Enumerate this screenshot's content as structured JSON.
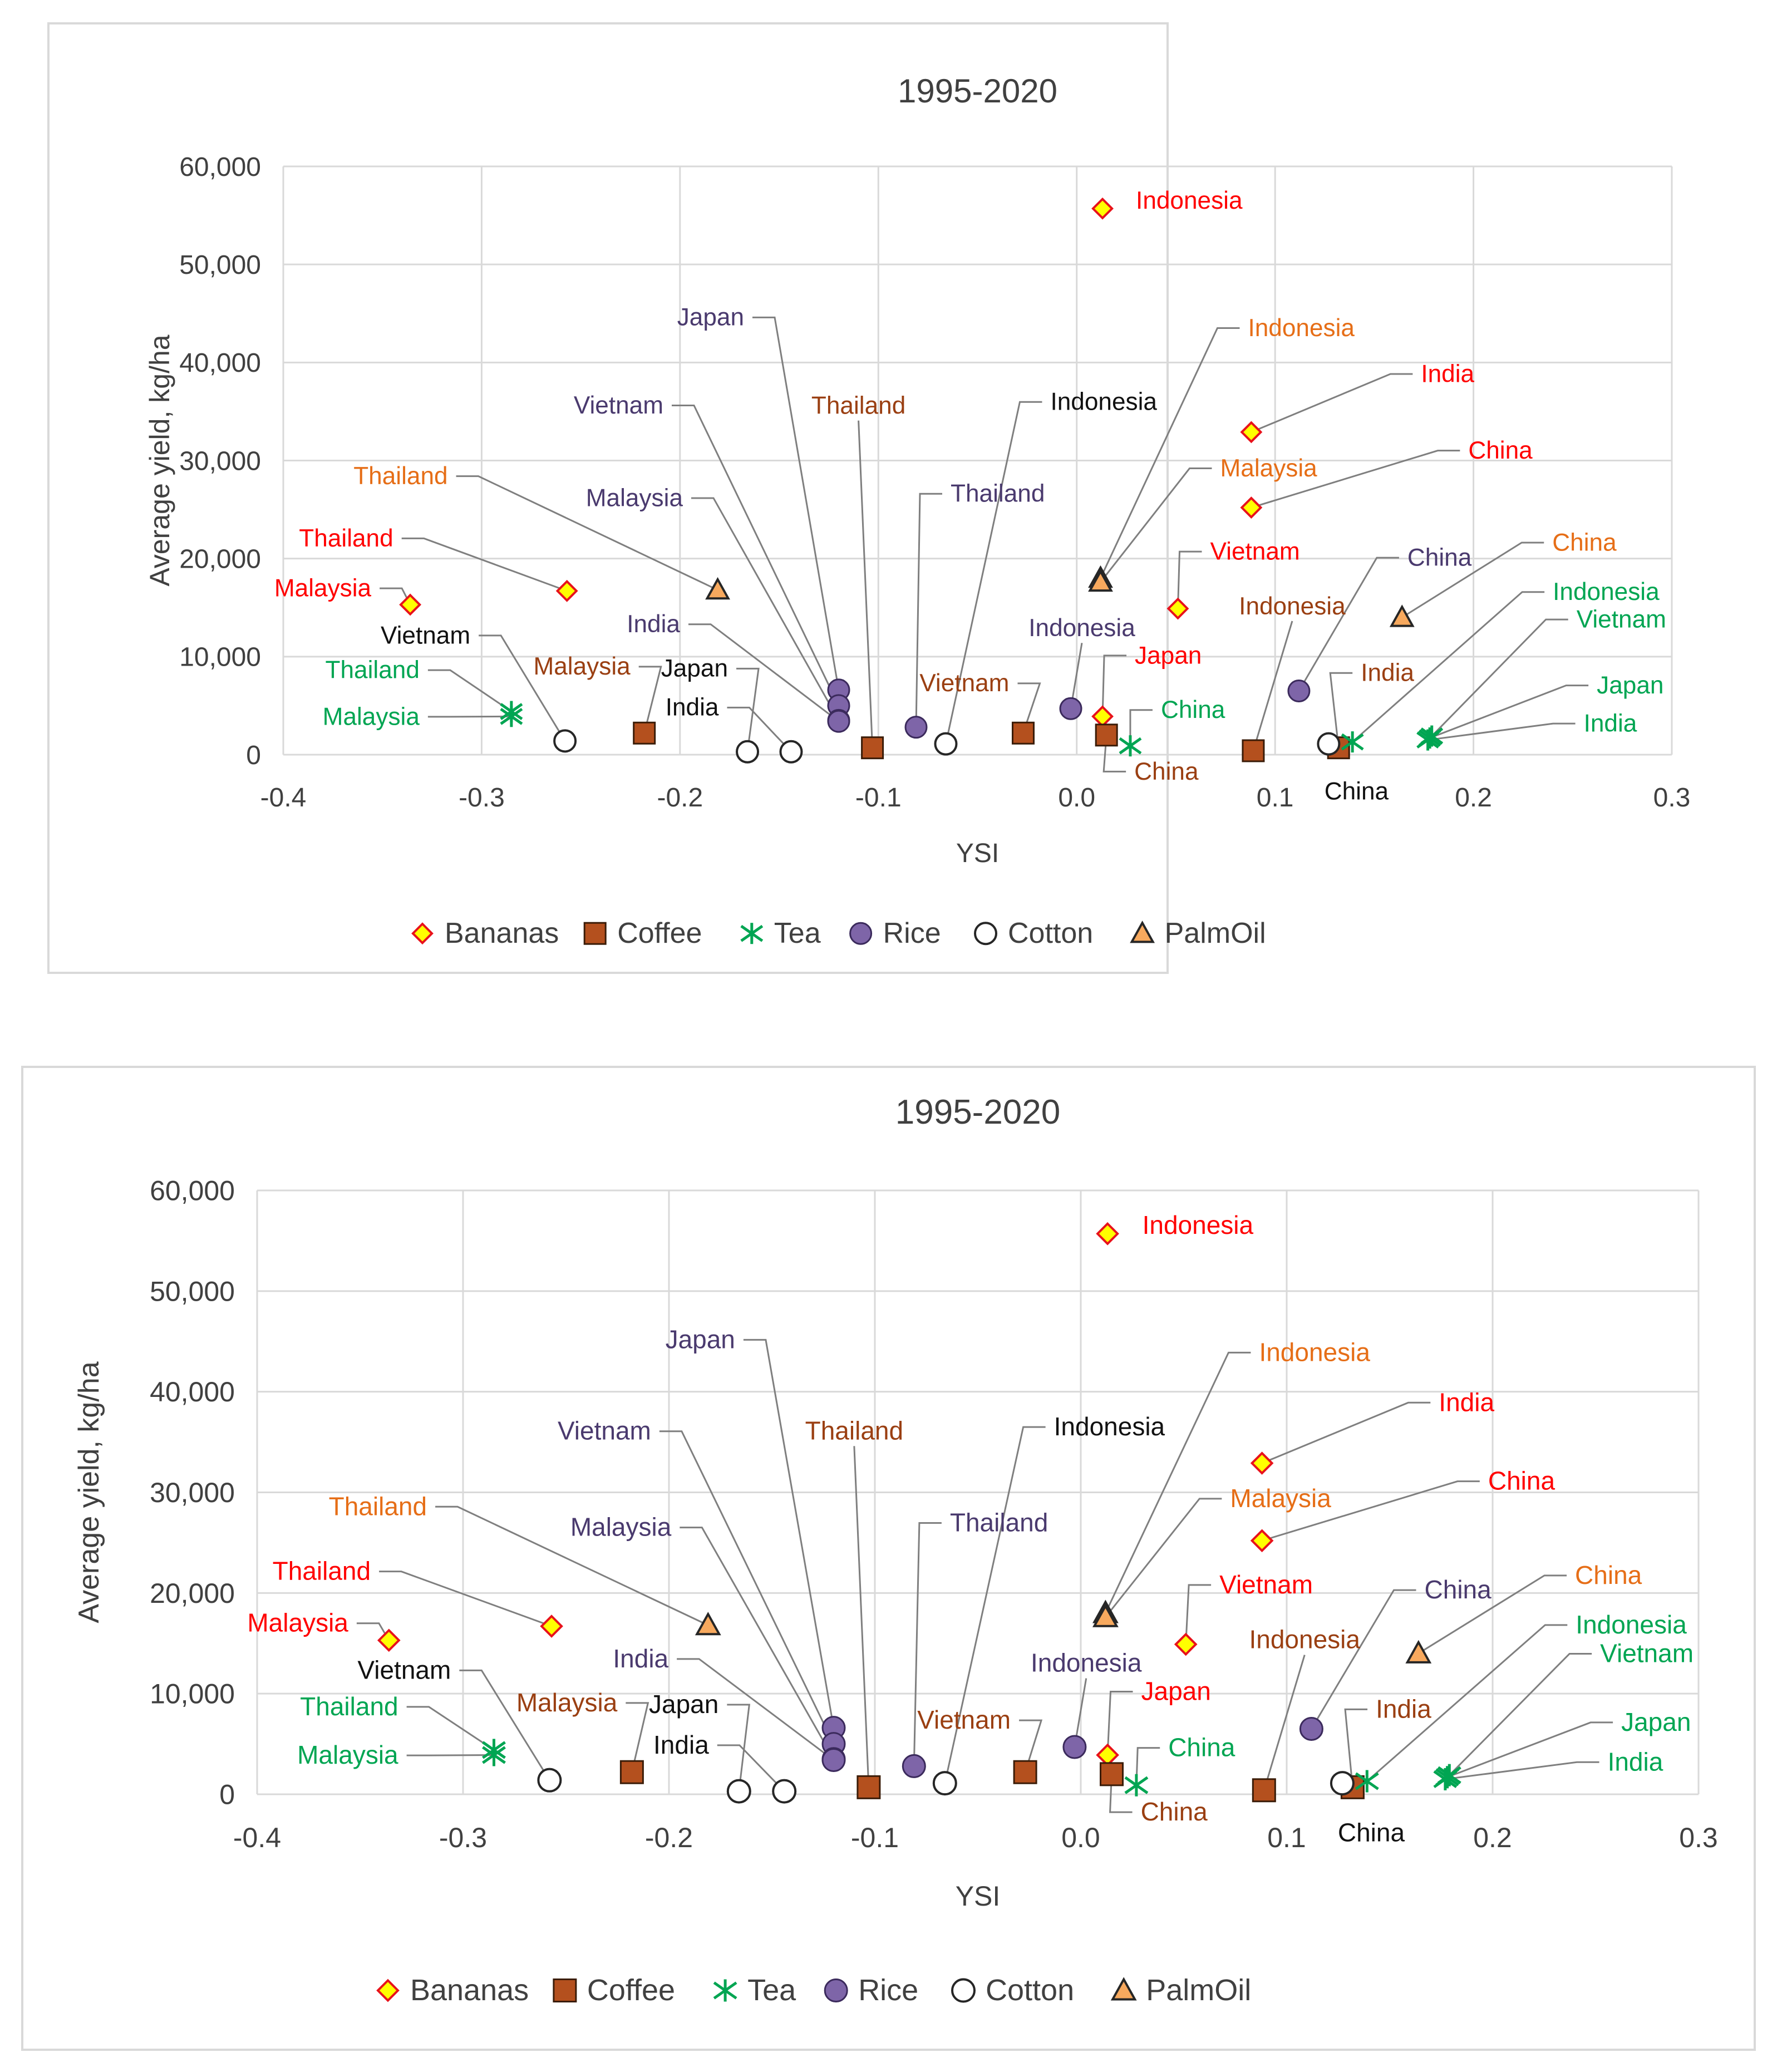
{
  "colors": {
    "bananas_fill": "#ffff00",
    "bananas_stroke": "#e8121b",
    "coffee_fill": "#b4501e",
    "coffee_stroke": "#3a1c08",
    "tea": "#00a552",
    "rice_fill": "#7e65a8",
    "rice_stroke": "#3b2a5c",
    "cotton_fill": "#ffffff",
    "cotton_stroke": "#262626",
    "palm_fill": "#f7a95e",
    "palm_stroke": "#262626",
    "label_red": "#ff0000",
    "label_orange": "#e66e17",
    "label_brown": "#9a3f12",
    "label_purple": "#4a3a6e",
    "label_black": "#111111",
    "label_green": "#00a552",
    "grid": "#d9d9d9",
    "leader": "#7f7f7f",
    "text": "#404040"
  },
  "chart_data": [
    {
      "type": "scatter",
      "title": "1995-2020",
      "xlabel": "YSI",
      "ylabel": "Average yield, kg/ha",
      "xlim": [
        -0.4,
        0.3
      ],
      "ylim": [
        0,
        60000
      ],
      "x_ticks": [
        "-0.4",
        "-0.3",
        "-0.2",
        "-0.1",
        "0.0",
        "0.1",
        "0.2",
        "0.3"
      ],
      "y_ticks": [
        "0",
        "10,000",
        "20,000",
        "30,000",
        "40,000",
        "50,000",
        "60,000"
      ],
      "grid": true,
      "legend_position": "bottom",
      "series": [
        {
          "name": "Bananas",
          "marker": "diamond",
          "points": [
            {
              "label": "Indonesia",
              "x": 0.013,
              "y": 55700
            },
            {
              "label": "India",
              "x": 0.088,
              "y": 32900
            },
            {
              "label": "China",
              "x": 0.088,
              "y": 25200
            },
            {
              "label": "Vietnam",
              "x": 0.051,
              "y": 14900
            },
            {
              "label": "Thailand",
              "x": -0.257,
              "y": 16700
            },
            {
              "label": "Malaysia",
              "x": -0.336,
              "y": 15300
            },
            {
              "label": "Japan",
              "x": 0.013,
              "y": 3900
            }
          ]
        },
        {
          "name": "Coffee",
          "marker": "square",
          "points": [
            {
              "label": "Malaysia",
              "x": -0.218,
              "y": 2200
            },
            {
              "label": "Thailand",
              "x": -0.103,
              "y": 700
            },
            {
              "label": "Vietnam",
              "x": -0.027,
              "y": 2200
            },
            {
              "label": "China",
              "x": 0.015,
              "y": 2000
            },
            {
              "label": "Indonesia",
              "x": 0.089,
              "y": 400
            },
            {
              "label": "India",
              "x": 0.132,
              "y": 700
            }
          ]
        },
        {
          "name": "Tea",
          "marker": "star",
          "points": [
            {
              "label": "Thailand",
              "x": -0.285,
              "y": 4400
            },
            {
              "label": "Malaysia",
              "x": -0.285,
              "y": 3900
            },
            {
              "label": "China",
              "x": 0.027,
              "y": 900
            },
            {
              "label": "Indonesia",
              "x": 0.139,
              "y": 1300
            },
            {
              "label": "Vietnam",
              "x": 0.179,
              "y": 1900
            },
            {
              "label": "Japan",
              "x": 0.178,
              "y": 1700
            },
            {
              "label": "India",
              "x": 0.177,
              "y": 1500
            }
          ]
        },
        {
          "name": "Rice",
          "marker": "circle",
          "points": [
            {
              "label": "Japan",
              "x": -0.12,
              "y": 6600
            },
            {
              "label": "Vietnam",
              "x": -0.12,
              "y": 5000
            },
            {
              "label": "Malaysia",
              "x": -0.12,
              "y": 3500
            },
            {
              "label": "India",
              "x": -0.12,
              "y": 3400
            },
            {
              "label": "Thailand",
              "x": -0.081,
              "y": 2800
            },
            {
              "label": "Indonesia",
              "x": -0.003,
              "y": 4700
            },
            {
              "label": "China",
              "x": 0.112,
              "y": 6500
            }
          ]
        },
        {
          "name": "Cotton",
          "marker": "open-circle",
          "points": [
            {
              "label": "Vietnam",
              "x": -0.258,
              "y": 1400
            },
            {
              "label": "Japan",
              "x": -0.166,
              "y": 300
            },
            {
              "label": "India",
              "x": -0.144,
              "y": 300
            },
            {
              "label": "Indonesia",
              "x": -0.066,
              "y": 1100
            },
            {
              "label": "China",
              "x": 0.127,
              "y": 1100
            }
          ]
        },
        {
          "name": "PalmOil",
          "marker": "triangle",
          "points": [
            {
              "label": "Thailand",
              "x": -0.181,
              "y": 16800
            },
            {
              "label": "Indonesia",
              "x": 0.012,
              "y": 18000
            },
            {
              "label": "Malaysia",
              "x": 0.012,
              "y": 17600
            },
            {
              "label": "China",
              "x": 0.164,
              "y": 14000
            }
          ]
        }
      ]
    },
    {
      "type": "scatter",
      "title": "1995-2020",
      "xlabel": "YSI",
      "ylabel": "Average yield, kg/ha",
      "xlim": [
        -0.4,
        0.3
      ],
      "ylim": [
        0,
        60000
      ],
      "x_ticks": [
        "-0.4",
        "-0.3",
        "-0.2",
        "-0.1",
        "0.0",
        "0.1",
        "0.2",
        "0.3"
      ],
      "y_ticks": [
        "0",
        "10,000",
        "20,000",
        "30,000",
        "40,000",
        "50,000",
        "60,000"
      ],
      "grid": true,
      "legend_position": "bottom",
      "series": [
        {
          "name": "Bananas",
          "marker": "diamond",
          "points": [
            {
              "label": "Indonesia",
              "x": 0.013,
              "y": 55700
            },
            {
              "label": "India",
              "x": 0.088,
              "y": 32900
            },
            {
              "label": "China",
              "x": 0.088,
              "y": 25200
            },
            {
              "label": "Vietnam",
              "x": 0.051,
              "y": 14900
            },
            {
              "label": "Thailand",
              "x": -0.257,
              "y": 16700
            },
            {
              "label": "Malaysia",
              "x": -0.336,
              "y": 15300
            },
            {
              "label": "Japan",
              "x": 0.013,
              "y": 3900
            }
          ]
        },
        {
          "name": "Coffee",
          "marker": "square",
          "points": [
            {
              "label": "Malaysia",
              "x": -0.218,
              "y": 2200
            },
            {
              "label": "Thailand",
              "x": -0.103,
              "y": 700
            },
            {
              "label": "Vietnam",
              "x": -0.027,
              "y": 2200
            },
            {
              "label": "China",
              "x": 0.015,
              "y": 2000
            },
            {
              "label": "Indonesia",
              "x": 0.089,
              "y": 400
            },
            {
              "label": "India",
              "x": 0.132,
              "y": 700
            }
          ]
        },
        {
          "name": "Tea",
          "marker": "star",
          "points": [
            {
              "label": "Thailand",
              "x": -0.285,
              "y": 4400
            },
            {
              "label": "Malaysia",
              "x": -0.285,
              "y": 3900
            },
            {
              "label": "China",
              "x": 0.027,
              "y": 900
            },
            {
              "label": "Indonesia",
              "x": 0.139,
              "y": 1300
            },
            {
              "label": "Vietnam",
              "x": 0.179,
              "y": 1900
            },
            {
              "label": "Japan",
              "x": 0.178,
              "y": 1700
            },
            {
              "label": "India",
              "x": 0.177,
              "y": 1500
            }
          ]
        },
        {
          "name": "Rice",
          "marker": "circle",
          "points": [
            {
              "label": "Japan",
              "x": -0.12,
              "y": 6600
            },
            {
              "label": "Vietnam",
              "x": -0.12,
              "y": 5000
            },
            {
              "label": "Malaysia",
              "x": -0.12,
              "y": 3500
            },
            {
              "label": "India",
              "x": -0.12,
              "y": 3400
            },
            {
              "label": "Thailand",
              "x": -0.081,
              "y": 2800
            },
            {
              "label": "Indonesia",
              "x": -0.003,
              "y": 4700
            },
            {
              "label": "China",
              "x": 0.112,
              "y": 6500
            }
          ]
        },
        {
          "name": "Cotton",
          "marker": "open-circle",
          "points": [
            {
              "label": "Vietnam",
              "x": -0.258,
              "y": 1400
            },
            {
              "label": "Japan",
              "x": -0.166,
              "y": 300
            },
            {
              "label": "India",
              "x": -0.144,
              "y": 300
            },
            {
              "label": "Indonesia",
              "x": -0.066,
              "y": 1100
            },
            {
              "label": "China",
              "x": 0.127,
              "y": 1100
            }
          ]
        },
        {
          "name": "PalmOil",
          "marker": "triangle",
          "points": [
            {
              "label": "Thailand",
              "x": -0.181,
              "y": 16800
            },
            {
              "label": "Indonesia",
              "x": 0.012,
              "y": 18000
            },
            {
              "label": "Malaysia",
              "x": 0.012,
              "y": 17600
            },
            {
              "label": "China",
              "x": 0.164,
              "y": 14000
            }
          ]
        }
      ]
    }
  ]
}
